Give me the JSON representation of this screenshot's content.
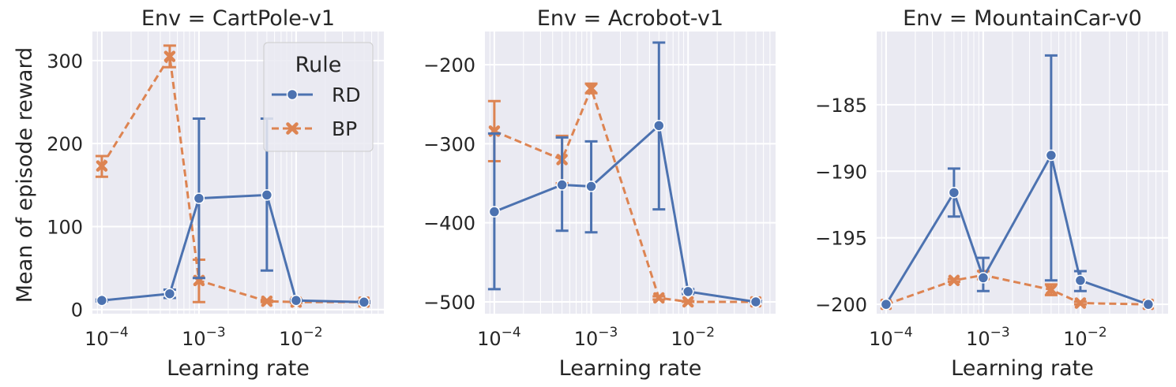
{
  "colors": {
    "panel_bg": "#eaeaf2",
    "grid": "#ffffff",
    "text": "#262626",
    "RD": "#4c72b0",
    "BP": "#dd8452"
  },
  "figure": {
    "ylabel": "Mean of episode reward",
    "legend": {
      "title": "Rule",
      "entries": [
        "RD",
        "BP"
      ],
      "placement": "top-right of first panel"
    }
  },
  "chart_data": [
    {
      "type": "line",
      "title": "Env = CartPole-v1",
      "xlabel": "Learning rate",
      "ylabel": "Mean of episode reward",
      "xscale": "log",
      "xlim": [
        8e-05,
        0.08
      ],
      "ylim": [
        -5,
        335
      ],
      "yticks": [
        0,
        100,
        200,
        300
      ],
      "ytick_labels": [
        "0",
        "100",
        "200",
        "300"
      ],
      "xticks": [
        0.0001,
        0.001,
        0.01
      ],
      "xtick_labels": [
        "10^-4",
        "10^-3",
        "10^-2"
      ],
      "grid": true,
      "series": [
        {
          "name": "RD",
          "marker": "circle",
          "linestyle": "solid",
          "x": [
            0.0001,
            0.0005,
            0.001,
            0.005,
            0.01,
            0.05
          ],
          "y": [
            11,
            19,
            134,
            138,
            11,
            9
          ],
          "err_low": [
            10,
            14,
            38,
            47,
            10,
            8
          ],
          "err_high": [
            12,
            24,
            230,
            230,
            12,
            10
          ]
        },
        {
          "name": "BP",
          "marker": "x",
          "linestyle": "dashed",
          "x": [
            0.0001,
            0.0005,
            0.001,
            0.005,
            0.01,
            0.05
          ],
          "y": [
            173,
            305,
            35,
            10,
            9,
            9
          ],
          "err_low": [
            160,
            292,
            9,
            9,
            8,
            8
          ],
          "err_high": [
            185,
            318,
            60,
            11,
            10,
            10
          ]
        }
      ]
    },
    {
      "type": "line",
      "title": "Env = Acrobot-v1",
      "xlabel": "Learning rate",
      "xscale": "log",
      "xlim": [
        8e-05,
        0.08
      ],
      "ylim": [
        -515,
        -158
      ],
      "yticks": [
        -500,
        -400,
        -300,
        -200
      ],
      "ytick_labels": [
        "−500",
        "−400",
        "−300",
        "−200"
      ],
      "xticks": [
        0.0001,
        0.001,
        0.01
      ],
      "xtick_labels": [
        "10^-4",
        "10^-3",
        "10^-2"
      ],
      "grid": true,
      "series": [
        {
          "name": "RD",
          "marker": "circle",
          "linestyle": "solid",
          "x": [
            0.0001,
            0.0005,
            0.001,
            0.005,
            0.01,
            0.05
          ],
          "y": [
            -386,
            -352,
            -354,
            -277,
            -487,
            -500
          ],
          "err_low": [
            -484,
            -410,
            -412,
            -383,
            -490,
            -500
          ],
          "err_high": [
            -287,
            -292,
            -297,
            -172,
            -484,
            -499
          ]
        },
        {
          "name": "BP",
          "marker": "x",
          "linestyle": "dashed",
          "x": [
            0.0001,
            0.0005,
            0.001,
            0.005,
            0.01,
            0.05
          ],
          "y": [
            -284,
            -320,
            -230,
            -495,
            -500,
            -500
          ],
          "err_low": [
            -322,
            -350,
            -236,
            -497,
            -500,
            -500
          ],
          "err_high": [
            -246,
            -290,
            -224,
            -493,
            -499,
            -499
          ]
        }
      ]
    },
    {
      "type": "line",
      "title": "Env = MountainCar-v0",
      "xlabel": "Learning rate",
      "xscale": "log",
      "xlim": [
        8e-05,
        0.08
      ],
      "ylim": [
        -200.7,
        -179.5
      ],
      "yticks": [
        -200,
        -195,
        -190,
        -185
      ],
      "ytick_labels": [
        "−200",
        "−195",
        "−190",
        "−185"
      ],
      "xticks": [
        0.0001,
        0.001,
        0.01
      ],
      "xtick_labels": [
        "10^-4",
        "10^-3",
        "10^-2"
      ],
      "grid": true,
      "series": [
        {
          "name": "RD",
          "marker": "circle",
          "linestyle": "solid",
          "x": [
            0.0001,
            0.0005,
            0.001,
            0.005,
            0.01,
            0.05
          ],
          "y": [
            -200,
            -191.6,
            -198,
            -188.8,
            -198.2,
            -200
          ],
          "err_low": [
            -200,
            -193.4,
            -199,
            -198.2,
            -199,
            -200
          ],
          "err_high": [
            -200,
            -189.8,
            -196.5,
            -181.3,
            -197.5,
            -200
          ]
        },
        {
          "name": "BP",
          "marker": "x",
          "linestyle": "dashed",
          "x": [
            0.0001,
            0.0005,
            0.001,
            0.005,
            0.01,
            0.05
          ],
          "y": [
            -200,
            -198.2,
            -197.8,
            -198.9,
            -199.9,
            -200
          ],
          "err_low": [
            -200,
            -198.3,
            -198.1,
            -199.3,
            -200,
            -200
          ],
          "err_high": [
            -200,
            -198.1,
            -197.5,
            -198.5,
            -199.8,
            -200
          ]
        }
      ]
    }
  ]
}
